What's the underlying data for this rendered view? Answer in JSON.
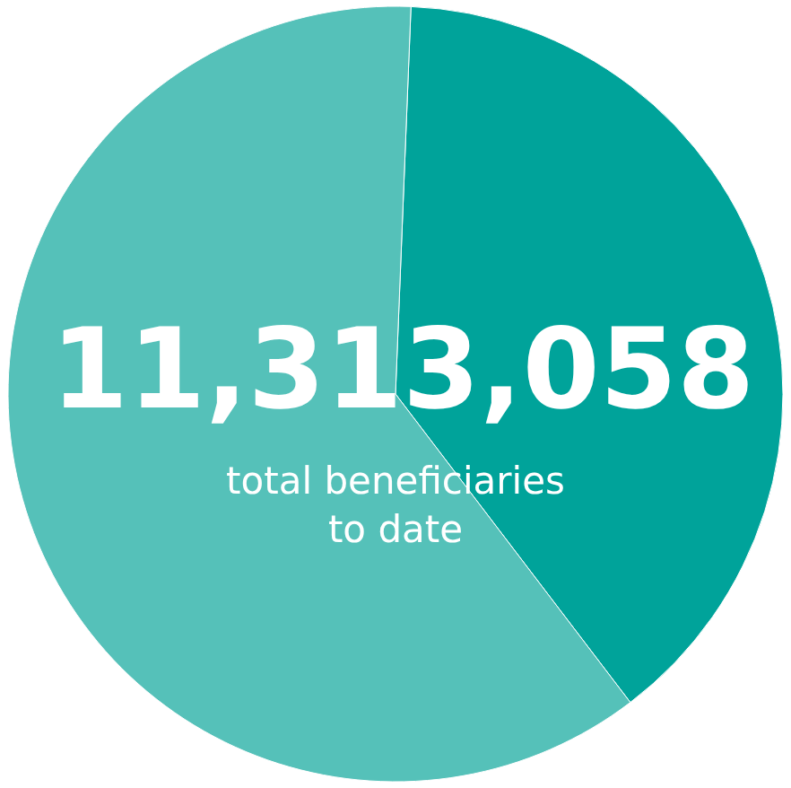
{
  "chart_data": {
    "type": "pie",
    "categories": [
      null,
      null
    ],
    "values": [
      39,
      61
    ],
    "colors": [
      "#00a39a",
      "#55c1b9"
    ],
    "annotations": [
      "11,313,058",
      "total beneficiaries to date"
    ]
  }
}
